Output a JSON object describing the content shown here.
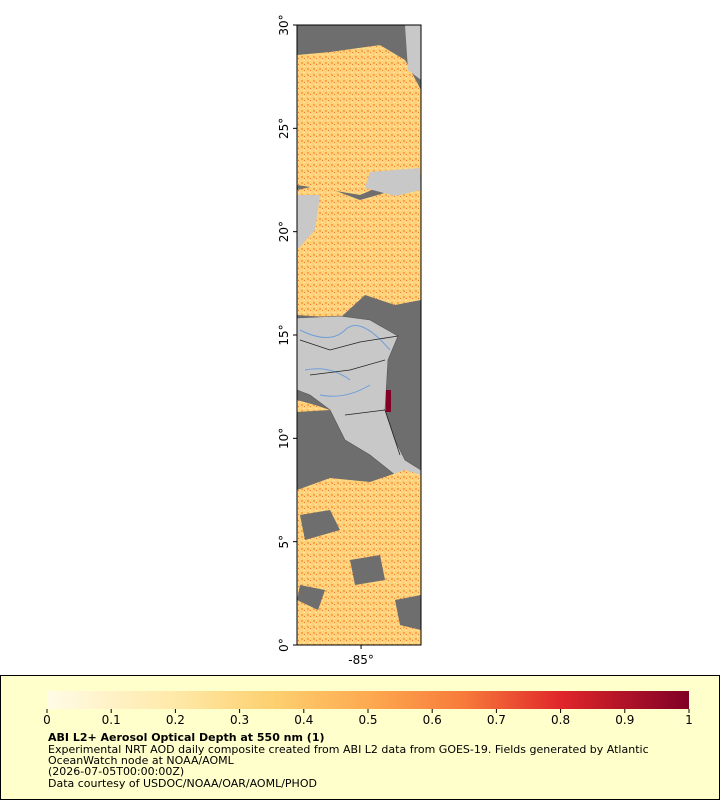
{
  "map": {
    "ylim": [
      0,
      30
    ],
    "yticks": [
      {
        "value": 0,
        "label": "0°"
      },
      {
        "value": 5,
        "label": "5°"
      },
      {
        "value": 10,
        "label": "10°"
      },
      {
        "value": 15,
        "label": "15°"
      },
      {
        "value": 20,
        "label": "20°"
      },
      {
        "value": 25,
        "label": "25°"
      },
      {
        "value": 30,
        "label": "30°"
      }
    ],
    "xlim": [
      -88.1,
      -82.1
    ],
    "xticks": [
      {
        "value": -85,
        "label": "-85°"
      }
    ]
  },
  "colorbar": {
    "lim": [
      0,
      1
    ],
    "ticks": [
      0,
      0.1,
      0.2,
      0.3,
      0.4,
      0.5,
      0.6,
      0.7,
      0.8,
      0.9,
      1
    ]
  },
  "caption": {
    "title": "ABI L2+ Aerosol Optical Depth at 550 nm (1)",
    "lines": [
      "Experimental NRT AOD daily composite created from ABI L2 data from GOES-19. Fields generated by Atlantic",
      "OceanWatch node at NOAA/AOML",
      "(2026-07-05T00:00:00Z)",
      "Data courtesy of USDOC/NOAA/OAR/AOML/PHOD"
    ]
  }
}
